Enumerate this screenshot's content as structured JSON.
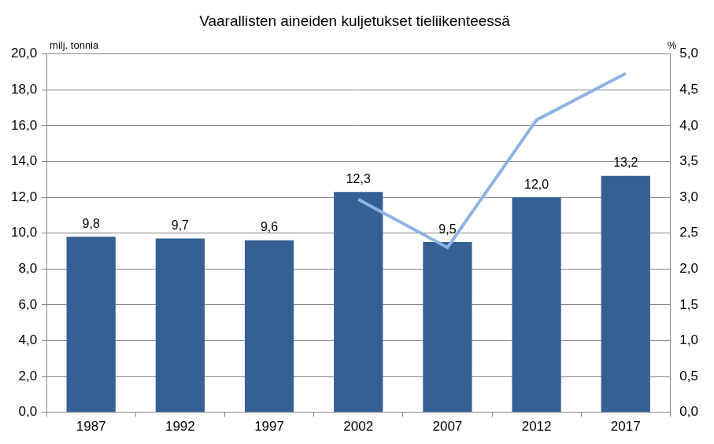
{
  "chart_data": {
    "type": "bar",
    "title": "Vaarallisten aineiden kuljetukset tieliikenteessä",
    "ylabel": "milj. tonnia",
    "y2label": "%",
    "categories": [
      "1987",
      "1992",
      "1997",
      "2002",
      "2007",
      "2012",
      "2017"
    ],
    "series": [
      {
        "type": "bar",
        "color": "#356094",
        "values": [
          9.8,
          9.7,
          9.6,
          12.3,
          9.5,
          12.0,
          13.2
        ],
        "data_labels": true,
        "value_labels": [
          "9,8",
          "9,7",
          "9,6",
          "12,3",
          "9,5",
          "12,0",
          "13,2"
        ]
      },
      {
        "type": "line",
        "axis": "y2",
        "color": "#8db3e2",
        "marker": "none",
        "line_style": "solid",
        "values": [
          null,
          null,
          null,
          2.97,
          2.3,
          4.08,
          4.73
        ]
      }
    ],
    "ylim": [
      0,
      20
    ],
    "yticks": [
      {
        "value": 0,
        "label": "0,0"
      },
      {
        "value": 2,
        "label": "2,0"
      },
      {
        "value": 4,
        "label": "4,0"
      },
      {
        "value": 6,
        "label": "6,0"
      },
      {
        "value": 8,
        "label": "8,0"
      },
      {
        "value": 10,
        "label": "10,0"
      },
      {
        "value": 12,
        "label": "12,0"
      },
      {
        "value": 14,
        "label": "14,0"
      },
      {
        "value": 16,
        "label": "16,0"
      },
      {
        "value": 18,
        "label": "18,0"
      },
      {
        "value": 20,
        "label": "20,0"
      }
    ],
    "y2lim": [
      0,
      5
    ],
    "y2ticks": [
      {
        "value": 0,
        "label": "0,0"
      },
      {
        "value": 0.5,
        "label": "0,5"
      },
      {
        "value": 1,
        "label": "1,0"
      },
      {
        "value": 1.5,
        "label": "1,5"
      },
      {
        "value": 2,
        "label": "2,0"
      },
      {
        "value": 2.5,
        "label": "2,5"
      },
      {
        "value": 3,
        "label": "3,0"
      },
      {
        "value": 3.5,
        "label": "3,5"
      },
      {
        "value": 4,
        "label": "4,0"
      },
      {
        "value": 4.5,
        "label": "4,5"
      },
      {
        "value": 5,
        "label": "5,0"
      }
    ],
    "grid": true
  }
}
